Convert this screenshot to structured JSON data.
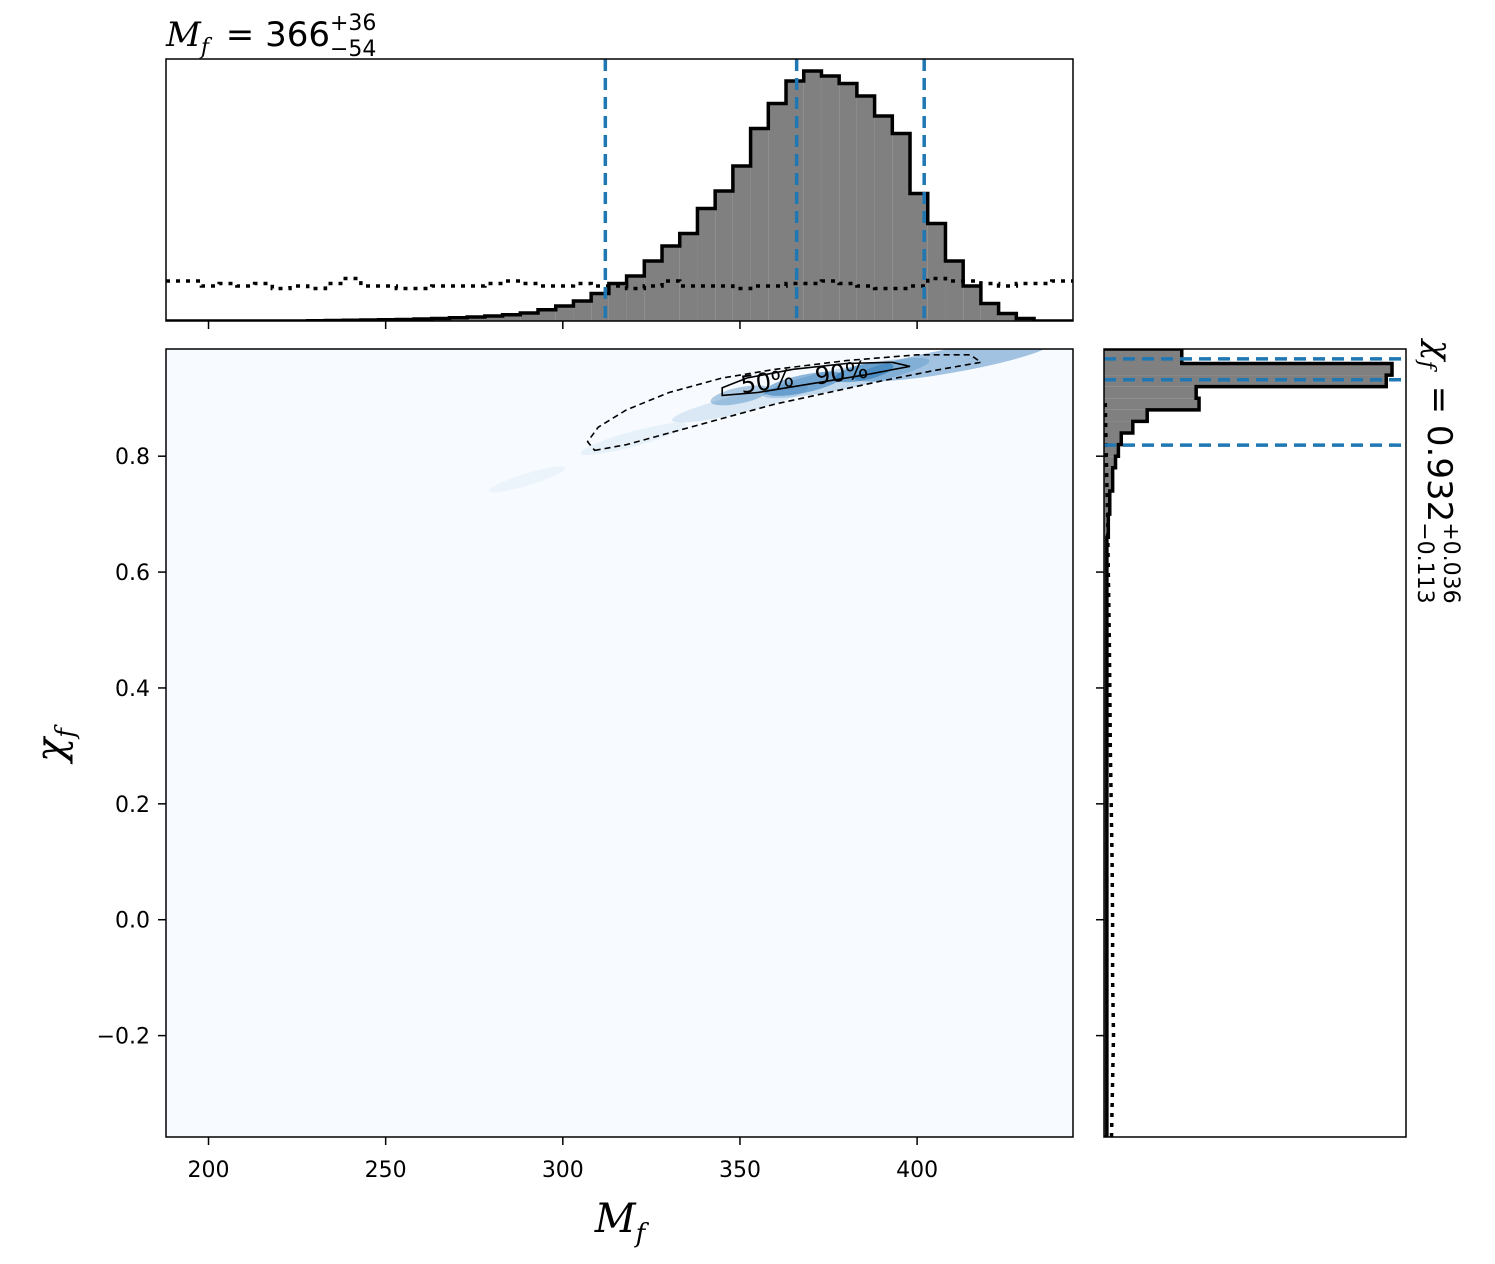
{
  "chart_data": [
    {
      "type": "heatmap",
      "panel": "joint",
      "xlabel": "M_f",
      "ylabel": "χ_f",
      "xlim": [
        188,
        444
      ],
      "ylim": [
        -0.375,
        0.985
      ],
      "x_ticks": [
        200,
        250,
        300,
        350,
        400
      ],
      "x_tick_labels": [
        "200",
        "250",
        "300",
        "350",
        "400"
      ],
      "y_ticks": [
        -0.2,
        0.0,
        0.2,
        0.4,
        0.6,
        0.8
      ],
      "y_tick_labels": [
        "−0.2",
        "0.0",
        "0.2",
        "0.4",
        "0.6",
        "0.8"
      ],
      "contour_labels": [
        "50%",
        "90%"
      ],
      "contour_label_positions": [
        [
          358,
          0.915
        ],
        [
          379,
          0.93
        ]
      ],
      "contours": [
        {
          "level": "90%",
          "style": "dashed",
          "points": [
            [
              309,
              0.81
            ],
            [
              318,
              0.82
            ],
            [
              330,
              0.84
            ],
            [
              345,
              0.865
            ],
            [
              360,
              0.89
            ],
            [
              375,
              0.91
            ],
            [
              390,
              0.93
            ],
            [
              405,
              0.948
            ],
            [
              418,
              0.962
            ],
            [
              415,
              0.975
            ],
            [
              400,
              0.975
            ],
            [
              380,
              0.965
            ],
            [
              360,
              0.95
            ],
            [
              345,
              0.935
            ],
            [
              330,
              0.91
            ],
            [
              318,
              0.88
            ],
            [
              310,
              0.85
            ],
            [
              307,
              0.825
            ],
            [
              309,
              0.81
            ]
          ]
        },
        {
          "level": "50%",
          "style": "solid",
          "points": [
            [
              345,
              0.905
            ],
            [
              355,
              0.91
            ],
            [
              370,
              0.925
            ],
            [
              385,
              0.94
            ],
            [
              398,
              0.955
            ],
            [
              393,
              0.962
            ],
            [
              380,
              0.96
            ],
            [
              365,
              0.95
            ],
            [
              352,
              0.935
            ],
            [
              345,
              0.918
            ],
            [
              345,
              0.905
            ]
          ]
        }
      ],
      "density_ridge": [
        [
          290,
          0.76
        ],
        [
          320,
          0.83
        ],
        [
          350,
          0.89
        ],
        [
          380,
          0.935
        ],
        [
          410,
          0.965
        ]
      ],
      "colormap": "Blues",
      "background_color": "#f7fbff"
    },
    {
      "type": "bar",
      "panel": "top-marginal",
      "title": "M_f = 366 +36 −54",
      "title_parts": {
        "base": "M",
        "sub": "f",
        "value": "366",
        "plus": "+36",
        "minus": "−54"
      },
      "xlim": [
        188,
        444
      ],
      "bin_edges": [
        188,
        193,
        198,
        203,
        208,
        213,
        218,
        223,
        228,
        233,
        238,
        243,
        248,
        253,
        258,
        263,
        268,
        273,
        278,
        283,
        288,
        293,
        298,
        303,
        308,
        313,
        318,
        323,
        328,
        333,
        338,
        343,
        348,
        353,
        358,
        363,
        368,
        373,
        378,
        383,
        388,
        393,
        398,
        403,
        408,
        413,
        418,
        423,
        428,
        433,
        438,
        444
      ],
      "values": [
        0,
        0,
        0,
        0,
        0,
        0,
        0,
        0,
        0.001,
        0.002,
        0.003,
        0.004,
        0.005,
        0.006,
        0.008,
        0.01,
        0.013,
        0.016,
        0.02,
        0.025,
        0.032,
        0.045,
        0.06,
        0.08,
        0.11,
        0.15,
        0.18,
        0.24,
        0.3,
        0.35,
        0.45,
        0.52,
        0.62,
        0.77,
        0.87,
        0.96,
        1.0,
        0.98,
        0.95,
        0.9,
        0.82,
        0.75,
        0.51,
        0.39,
        0.24,
        0.14,
        0.07,
        0.03,
        0.01,
        0,
        0
      ],
      "prior_values": [
        0.16,
        0.16,
        0.14,
        0.15,
        0.14,
        0.15,
        0.13,
        0.14,
        0.13,
        0.15,
        0.17,
        0.14,
        0.14,
        0.13,
        0.13,
        0.14,
        0.14,
        0.14,
        0.15,
        0.16,
        0.15,
        0.14,
        0.14,
        0.15,
        0.14,
        0.14,
        0.13,
        0.14,
        0.16,
        0.14,
        0.14,
        0.14,
        0.13,
        0.14,
        0.14,
        0.15,
        0.15,
        0.16,
        0.15,
        0.14,
        0.13,
        0.13,
        0.14,
        0.17,
        0.16,
        0.16,
        0.15,
        0.14,
        0.15,
        0.15,
        0.16
      ],
      "quantile_lines": [
        312,
        366,
        402
      ],
      "x_ticks": [
        200,
        250,
        300,
        350,
        400
      ]
    },
    {
      "type": "bar",
      "panel": "right-marginal",
      "orientation": "horizontal",
      "title": "χ_f = 0.932 +0.036 −0.113",
      "title_parts": {
        "base": "χ",
        "sub": "f",
        "value": "0.932",
        "plus": "+0.036",
        "minus": "−0.113"
      },
      "ylim": [
        -0.375,
        0.985
      ],
      "bin_edges": [
        -0.375,
        0.62,
        0.66,
        0.7,
        0.74,
        0.78,
        0.8,
        0.82,
        0.84,
        0.86,
        0.88,
        0.9,
        0.92,
        0.94,
        0.96,
        0.985
      ],
      "values": [
        0.01,
        0.01,
        0.015,
        0.02,
        0.03,
        0.04,
        0.05,
        0.06,
        0.1,
        0.15,
        0.33,
        0.32,
        0.98,
        1.0,
        0.27
      ],
      "prior_x": [
        0.026,
        0.033,
        0.03,
        0.03,
        0.028,
        0.025,
        0.022,
        0.02,
        0.018,
        0.015,
        0.012,
        0.01,
        0.008,
        0.006,
        0.004
      ],
      "prior_y": [
        -0.375,
        -0.2,
        -0.1,
        0.0,
        0.1,
        0.2,
        0.3,
        0.4,
        0.5,
        0.6,
        0.7,
        0.75,
        0.8,
        0.85,
        0.9
      ],
      "quantile_lines": [
        0.819,
        0.932,
        0.968
      ],
      "y_ticks": [
        -0.2,
        0.0,
        0.2,
        0.4,
        0.6,
        0.8
      ]
    }
  ],
  "colors": {
    "histogram_fill": "#808080",
    "histogram_edge": "#000000",
    "quantile_line": "#1f77b4",
    "density_low": "#f7fbff",
    "density_high": "#2171b5"
  }
}
